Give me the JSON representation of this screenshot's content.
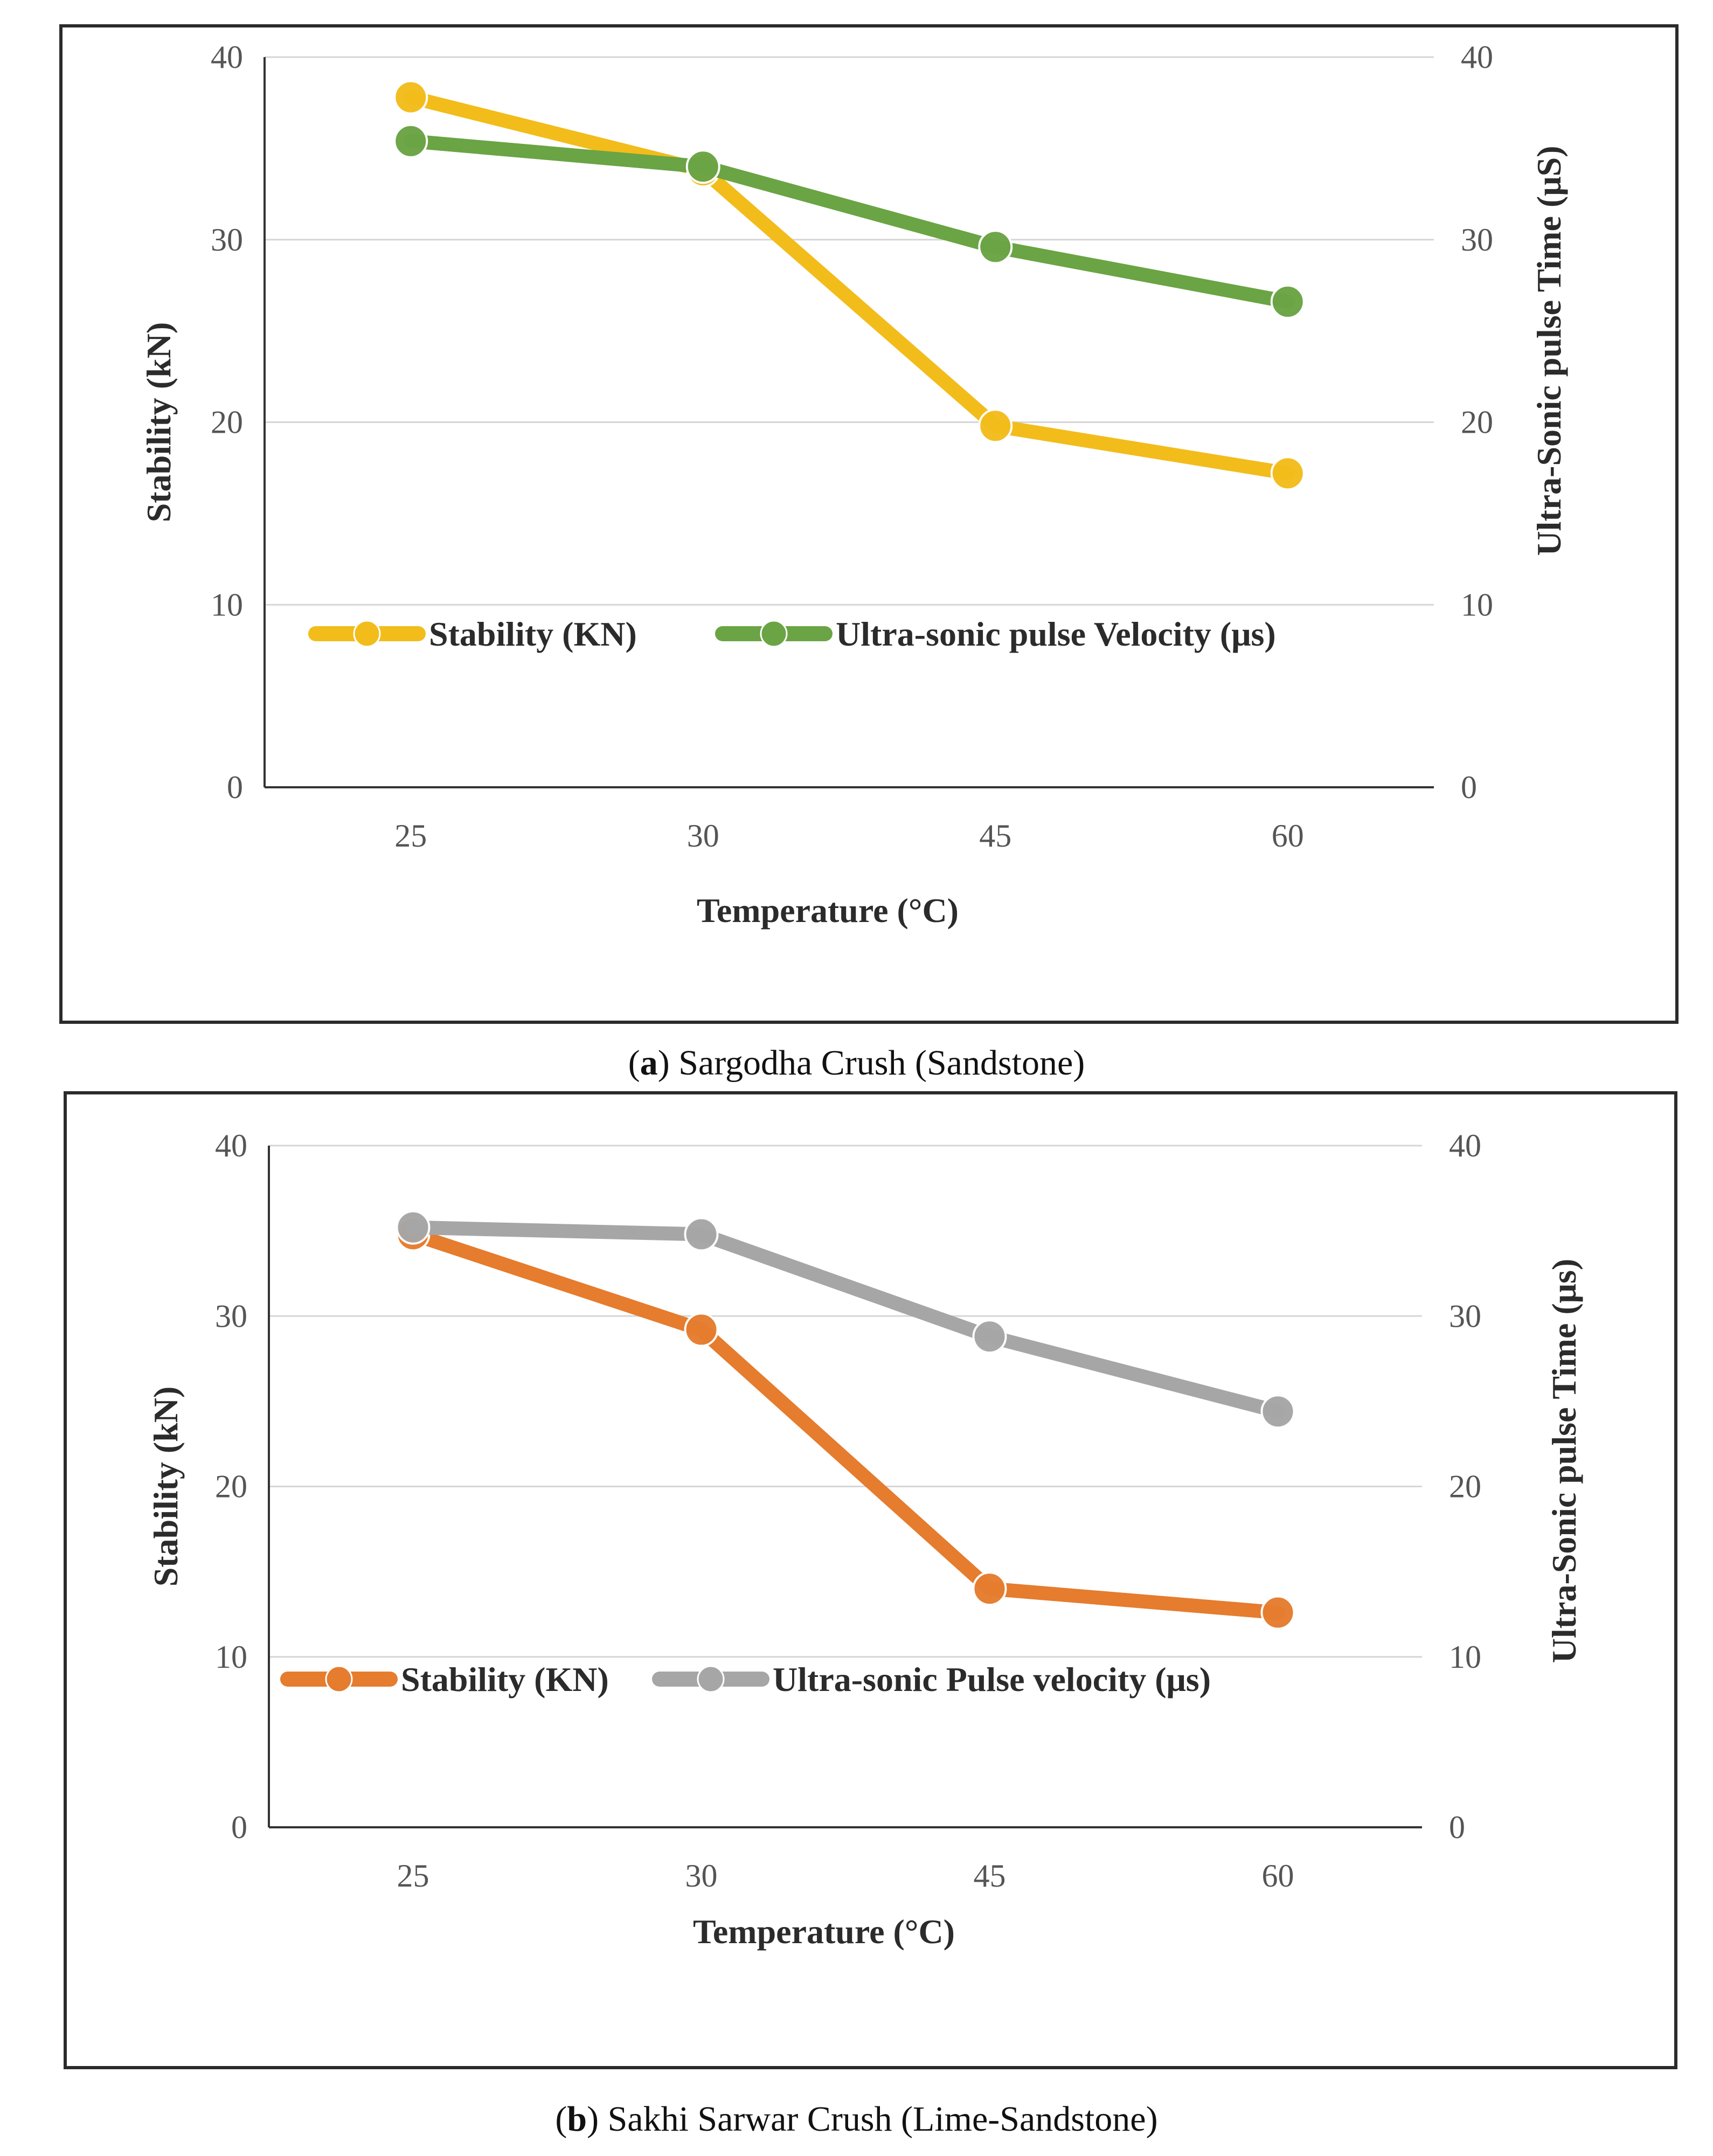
{
  "chart_data": [
    {
      "type": "line",
      "caption_letter": "a",
      "caption_text": "Sargodha Crush (Sandstone)",
      "categories": [
        "25",
        "30",
        "45",
        "60"
      ],
      "xlabel": "Temperature (°C)",
      "ylabel": "Stability (kN)",
      "y2label": "Ultra-Sonic pulse Time (μS)",
      "ylim": [
        0,
        40
      ],
      "y2lim": [
        0,
        40
      ],
      "yticks": [
        "0",
        "10",
        "20",
        "30",
        "40"
      ],
      "y2ticks": [
        "0",
        "10",
        "20",
        "30",
        "40"
      ],
      "grid": true,
      "legend_position": "middle-left",
      "series": [
        {
          "name": "Stability (KN)",
          "axis": "left",
          "color": "#f2bc1b",
          "values": [
            37.8,
            33.8,
            19.8,
            17.2
          ]
        },
        {
          "name": "Ultra-sonic pulse Velocity (μs)",
          "axis": "right",
          "color": "#6aa444",
          "values": [
            35.4,
            34.0,
            29.6,
            26.6
          ]
        }
      ]
    },
    {
      "type": "line",
      "caption_letter": "b",
      "caption_text": "Sakhi Sarwar Crush (Lime-Sandstone)",
      "categories": [
        "25",
        "30",
        "45",
        "60"
      ],
      "xlabel": "Temperature (°C)",
      "ylabel": "Stability (kN)",
      "y2label": "Ultra-Sonic pulse Time (μs)",
      "ylim": [
        0,
        40
      ],
      "y2lim": [
        0,
        40
      ],
      "yticks": [
        "0",
        "10",
        "20",
        "30",
        "40"
      ],
      "y2ticks": [
        "0",
        "10",
        "20",
        "30",
        "40"
      ],
      "grid": true,
      "legend_position": "middle-left",
      "series": [
        {
          "name": "Stability (KN)",
          "axis": "left",
          "color": "#e57c2e",
          "values": [
            34.8,
            29.2,
            14.0,
            12.6
          ]
        },
        {
          "name": "Ultra-sonic Pulse velocity (μs)",
          "axis": "right",
          "color": "#a6a6a6",
          "values": [
            35.2,
            34.8,
            28.8,
            24.4
          ]
        }
      ]
    }
  ]
}
